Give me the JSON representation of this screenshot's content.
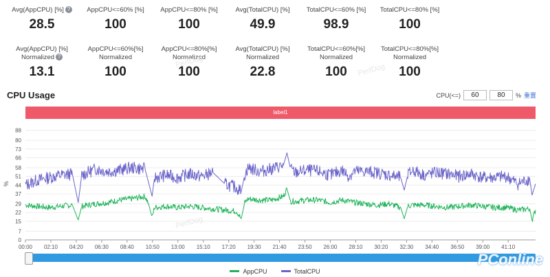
{
  "stats_row1": [
    {
      "label": "Avg(AppCPU) [%]",
      "value": "28.5",
      "help": true
    },
    {
      "label": "AppCPU<=60% [%]",
      "value": "100"
    },
    {
      "label": "AppCPU<=80% [%]",
      "value": "100"
    },
    {
      "label": "Avg(TotalCPU) [%]",
      "value": "49.9"
    },
    {
      "label": "TotalCPU<=60% [%]",
      "value": "98.9"
    },
    {
      "label": "TotalCPU<=80% [%]",
      "value": "100"
    }
  ],
  "stats_row2": [
    {
      "label": "Avg(AppCPU) [%]",
      "label2": "Normalized",
      "value": "13.1",
      "help": true
    },
    {
      "label": "AppCPU<=60%[%]",
      "label2": "Normalized",
      "value": "100"
    },
    {
      "label": "AppCPU<=80%[%]",
      "label2": "Normalized",
      "value": "100"
    },
    {
      "label": "Avg(TotalCPU) [%]",
      "label2": "Normalized",
      "value": "22.8"
    },
    {
      "label": "TotalCPU<=60%[%]",
      "label2": "Normalized",
      "value": "100"
    },
    {
      "label": "TotalCPU<=80%[%]",
      "label2": "Normalized",
      "value": "100"
    }
  ],
  "section_title": "CPU Usage",
  "threshold": {
    "label": "CPU(<=)",
    "v1": "60",
    "v2": "80",
    "unit": "%",
    "reset": "重置"
  },
  "label_bar": "label1",
  "watermark": "PConline",
  "watermark_faint": "PerfDog",
  "colors": {
    "app": "#1fb35a",
    "total": "#6a63c9",
    "label_bar": "#ee5a6a"
  },
  "chart_data": {
    "type": "line",
    "ylabel": "%",
    "ylim": [
      0,
      90
    ],
    "yticks": [
      0,
      7,
      15,
      22,
      29,
      37,
      44,
      51,
      58,
      66,
      73,
      80,
      88
    ],
    "x": [
      "00:00",
      "02:10",
      "04:20",
      "06:30",
      "08:40",
      "10:50",
      "13:00",
      "15:10",
      "17:20",
      "19:30",
      "21:40",
      "23:50",
      "26:00",
      "28:10",
      "30:20",
      "32:30",
      "34:40",
      "36:50",
      "39:00",
      "41:10"
    ],
    "xlim_minutes": [
      0,
      43.5
    ],
    "legend": "bottom",
    "series": [
      {
        "name": "AppCPU",
        "points": [
          [
            0,
            28
          ],
          [
            1,
            27
          ],
          [
            2,
            26
          ],
          [
            3,
            27
          ],
          [
            4,
            28
          ],
          [
            4.5,
            16
          ],
          [
            4.8,
            27
          ],
          [
            6,
            29
          ],
          [
            7,
            30
          ],
          [
            8,
            32
          ],
          [
            9,
            33
          ],
          [
            10.2,
            35
          ],
          [
            10.5,
            29
          ],
          [
            10.8,
            18
          ],
          [
            11,
            26
          ],
          [
            12,
            27
          ],
          [
            13,
            26
          ],
          [
            14,
            27
          ],
          [
            15,
            26
          ],
          [
            16,
            25
          ],
          [
            17,
            24
          ],
          [
            18,
            23
          ],
          [
            18.4,
            17
          ],
          [
            18.7,
            30
          ],
          [
            19,
            33
          ],
          [
            20,
            32
          ],
          [
            21,
            32
          ],
          [
            22,
            35
          ],
          [
            22.3,
            41
          ],
          [
            22.6,
            31
          ],
          [
            23,
            31
          ],
          [
            24,
            32
          ],
          [
            25,
            32
          ],
          [
            26,
            30
          ],
          [
            27,
            32
          ],
          [
            27.6,
            31
          ],
          [
            28,
            30
          ],
          [
            29,
            29
          ],
          [
            30,
            28
          ],
          [
            31,
            29
          ],
          [
            32,
            26
          ],
          [
            32.3,
            17
          ],
          [
            32.6,
            27
          ],
          [
            33,
            28
          ],
          [
            34,
            28
          ],
          [
            35,
            27
          ],
          [
            36,
            26
          ],
          [
            37,
            27
          ],
          [
            38,
            28
          ],
          [
            39,
            27
          ],
          [
            40,
            26
          ],
          [
            41,
            26
          ],
          [
            42,
            24
          ],
          [
            43,
            25
          ],
          [
            43.2,
            16
          ],
          [
            43.5,
            24
          ]
        ]
      },
      {
        "name": "TotalCPU",
        "points": [
          [
            0,
            44
          ],
          [
            1,
            48
          ],
          [
            2,
            50
          ],
          [
            3,
            52
          ],
          [
            4,
            53
          ],
          [
            4.5,
            30
          ],
          [
            4.8,
            52
          ],
          [
            6,
            57
          ],
          [
            7,
            55
          ],
          [
            8,
            56
          ],
          [
            9,
            58
          ],
          [
            10.2,
            57
          ],
          [
            10.5,
            46
          ],
          [
            10.8,
            35
          ],
          [
            11,
            50
          ],
          [
            12,
            52
          ],
          [
            13,
            50
          ],
          [
            14,
            53
          ],
          [
            15,
            51
          ],
          [
            16,
            54
          ],
          [
            17,
            45
          ],
          [
            18,
            42
          ],
          [
            18.4,
            39
          ],
          [
            18.7,
            52
          ],
          [
            19,
            58
          ],
          [
            20,
            55
          ],
          [
            21,
            57
          ],
          [
            22,
            60
          ],
          [
            22.3,
            70
          ],
          [
            22.6,
            57
          ],
          [
            23,
            54
          ],
          [
            24,
            56
          ],
          [
            25,
            55
          ],
          [
            26,
            52
          ],
          [
            27,
            56
          ],
          [
            27.6,
            51
          ],
          [
            28,
            55
          ],
          [
            29,
            55
          ],
          [
            30,
            54
          ],
          [
            31,
            52
          ],
          [
            32,
            50
          ],
          [
            32.3,
            40
          ],
          [
            32.6,
            52
          ],
          [
            33,
            56
          ],
          [
            34,
            52
          ],
          [
            35,
            54
          ],
          [
            36,
            53
          ],
          [
            37,
            51
          ],
          [
            38,
            53
          ],
          [
            39,
            50
          ],
          [
            40,
            50
          ],
          [
            41,
            51
          ],
          [
            42,
            45
          ],
          [
            43,
            49
          ],
          [
            43.2,
            36
          ],
          [
            43.5,
            45
          ]
        ]
      }
    ]
  }
}
